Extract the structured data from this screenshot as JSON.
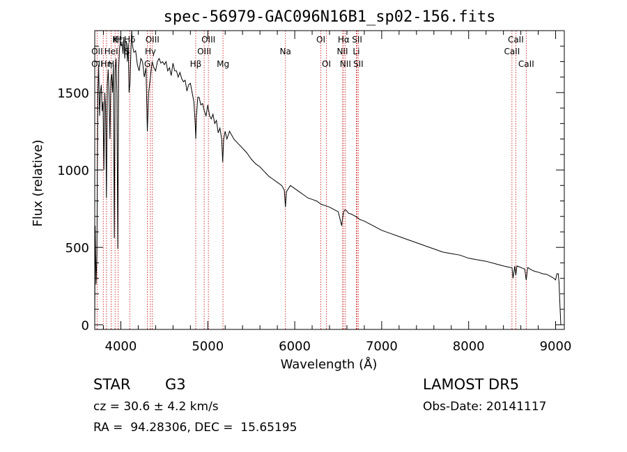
{
  "chart_data": {
    "type": "line",
    "title": "spec-56979-GAC096N16B1_sp02-156.fits",
    "xlabel": "Wavelength (Å)",
    "ylabel": "Flux (relative)",
    "xlim": [
      3700,
      9100
    ],
    "ylim": [
      -30,
      1900
    ],
    "x_ticks": [
      4000,
      5000,
      6000,
      7000,
      8000,
      9000
    ],
    "y_ticks": [
      0,
      500,
      1000,
      1500
    ],
    "grid": false,
    "series": [
      {
        "color": "#000000",
        "x": [
          3700,
          3705,
          3715,
          3725,
          3735,
          3745,
          3755,
          3765,
          3775,
          3785,
          3795,
          3805,
          3815,
          3825,
          3835,
          3845,
          3855,
          3865,
          3875,
          3885,
          3895,
          3905,
          3915,
          3925,
          3935,
          3945,
          3955,
          3965,
          3975,
          3985,
          3995,
          4005,
          4015,
          4025,
          4035,
          4045,
          4055,
          4065,
          4075,
          4085,
          4095,
          4105,
          4115,
          4125,
          4135,
          4150,
          4170,
          4190,
          4210,
          4230,
          4250,
          4270,
          4290,
          4305,
          4320,
          4340,
          4360,
          4380,
          4400,
          4420,
          4440,
          4460,
          4480,
          4500,
          4520,
          4540,
          4560,
          4580,
          4600,
          4620,
          4640,
          4660,
          4680,
          4700,
          4720,
          4740,
          4760,
          4780,
          4800,
          4820,
          4840,
          4855,
          4862,
          4870,
          4885,
          4900,
          4920,
          4940,
          4960,
          4980,
          5000,
          5020,
          5040,
          5060,
          5080,
          5100,
          5120,
          5140,
          5160,
          5172,
          5183,
          5200,
          5220,
          5250,
          5300,
          5350,
          5400,
          5450,
          5500,
          5550,
          5600,
          5650,
          5700,
          5750,
          5800,
          5850,
          5880,
          5893,
          5905,
          5950,
          6000,
          6050,
          6100,
          6150,
          6200,
          6250,
          6300,
          6350,
          6400,
          6450,
          6500,
          6540,
          6555,
          6563,
          6572,
          6590,
          6620,
          6650,
          6700,
          6750,
          6800,
          6900,
          7000,
          7100,
          7200,
          7300,
          7400,
          7500,
          7600,
          7700,
          7800,
          7900,
          8000,
          8100,
          8200,
          8300,
          8400,
          8480,
          8498,
          8510,
          8530,
          8542,
          8555,
          8580,
          8620,
          8645,
          8662,
          8680,
          8720,
          8760,
          8800,
          8850,
          8900,
          8950,
          8980,
          9000,
          9015,
          9030,
          9040,
          9050,
          9060
        ],
        "y": [
          0,
          640,
          260,
          450,
          1480,
          1680,
          1350,
          1500,
          1550,
          1380,
          1440,
          1000,
          1500,
          1400,
          820,
          1550,
          1650,
          1480,
          1200,
          1580,
          1620,
          1500,
          1680,
          560,
          1650,
          1720,
          1500,
          490,
          1650,
          1780,
          1830,
          1800,
          1820,
          1750,
          1860,
          1720,
          1830,
          1830,
          1700,
          1820,
          1500,
          1560,
          1750,
          1900,
          1800,
          1760,
          1770,
          1680,
          1640,
          1720,
          1700,
          1600,
          1660,
          1250,
          1500,
          1600,
          1700,
          1660,
          1640,
          1700,
          1720,
          1690,
          1700,
          1680,
          1700,
          1640,
          1660,
          1610,
          1690,
          1640,
          1640,
          1600,
          1630,
          1590,
          1570,
          1580,
          1510,
          1550,
          1560,
          1500,
          1440,
          1300,
          1200,
          1350,
          1470,
          1470,
          1420,
          1430,
          1380,
          1350,
          1420,
          1350,
          1330,
          1360,
          1300,
          1320,
          1240,
          1270,
          1200,
          1050,
          1200,
          1250,
          1200,
          1250,
          1200,
          1170,
          1140,
          1110,
          1070,
          1040,
          1020,
          990,
          960,
          940,
          920,
          900,
          870,
          760,
          860,
          900,
          880,
          860,
          840,
          820,
          810,
          800,
          780,
          770,
          760,
          745,
          730,
          640,
          710,
          730,
          740,
          740,
          720,
          715,
          700,
          680,
          670,
          640,
          610,
          590,
          570,
          550,
          530,
          510,
          490,
          470,
          460,
          450,
          430,
          420,
          410,
          395,
          380,
          370,
          370,
          300,
          380,
          320,
          380,
          375,
          365,
          360,
          290,
          370,
          355,
          345,
          340,
          330,
          325,
          310,
          300,
          290,
          330,
          330,
          270,
          120,
          0
        ]
      }
    ],
    "annotations": [
      {
        "label": "Hδ",
        "x": 4102,
        "row": 1
      },
      {
        "label": "H",
        "x": 3970,
        "row": 1
      },
      {
        "label": "K",
        "x": 3934,
        "row": 1
      },
      {
        "label": "Hε",
        "x": 3970,
        "row": 1
      },
      {
        "label": "OIII",
        "x": 4363,
        "row": 1
      },
      {
        "label": "OIII",
        "x": 5007,
        "row": 1
      },
      {
        "label": "OI",
        "x": 6300,
        "row": 1
      },
      {
        "label": "Hα",
        "x": 6563,
        "row": 1
      },
      {
        "label": "SII",
        "x": 6717,
        "row": 1
      },
      {
        "label": "CaII",
        "x": 8542,
        "row": 1
      },
      {
        "label": "OII",
        "x": 3727,
        "row": 2
      },
      {
        "label": "HeI",
        "x": 3889,
        "row": 2
      },
      {
        "label": "S",
        "x": 4072,
        "row": 2
      },
      {
        "label": "Hγ",
        "x": 4340,
        "row": 2
      },
      {
        "label": "OIII",
        "x": 4959,
        "row": 2
      },
      {
        "label": "Na",
        "x": 5893,
        "row": 2
      },
      {
        "label": "NII",
        "x": 6548,
        "row": 2
      },
      {
        "label": "Li",
        "x": 6708,
        "row": 2
      },
      {
        "label": "CaII",
        "x": 8498,
        "row": 2
      },
      {
        "label": "OII",
        "x": 3727,
        "row": 3
      },
      {
        "label": "Hη",
        "x": 3835,
        "row": 3
      },
      {
        "label": "H",
        "x": 3889,
        "row": 3
      },
      {
        "label": "G",
        "x": 4305,
        "row": 3
      },
      {
        "label": "Hβ",
        "x": 4861,
        "row": 3
      },
      {
        "label": "Mg",
        "x": 5175,
        "row": 3
      },
      {
        "label": "OI",
        "x": 6364,
        "row": 3
      },
      {
        "label": "NII",
        "x": 6583,
        "row": 3
      },
      {
        "label": "SII",
        "x": 6731,
        "row": 3
      },
      {
        "label": "CaII",
        "x": 8662,
        "row": 3
      }
    ],
    "line_positions": [
      3727,
      3798,
      3835,
      3889,
      3934,
      3970,
      4102,
      4305,
      4340,
      4363,
      4861,
      4959,
      5007,
      5175,
      5893,
      6300,
      6364,
      6548,
      6563,
      6583,
      6708,
      6717,
      6731,
      8498,
      8542,
      8662
    ]
  },
  "info": {
    "object_type": "STAR",
    "subclass": "G3",
    "survey": "LAMOST DR5",
    "redshift": "cz = 30.6 ± 4.2 km/s",
    "obs_date": "Obs-Date: 20141117",
    "coords": "RA =  94.28306, DEC =  15.65195"
  },
  "colors": {
    "spectrum": "#000000",
    "line_marker": "#cc0000",
    "axes": "#000000",
    "background": "#ffffff"
  }
}
